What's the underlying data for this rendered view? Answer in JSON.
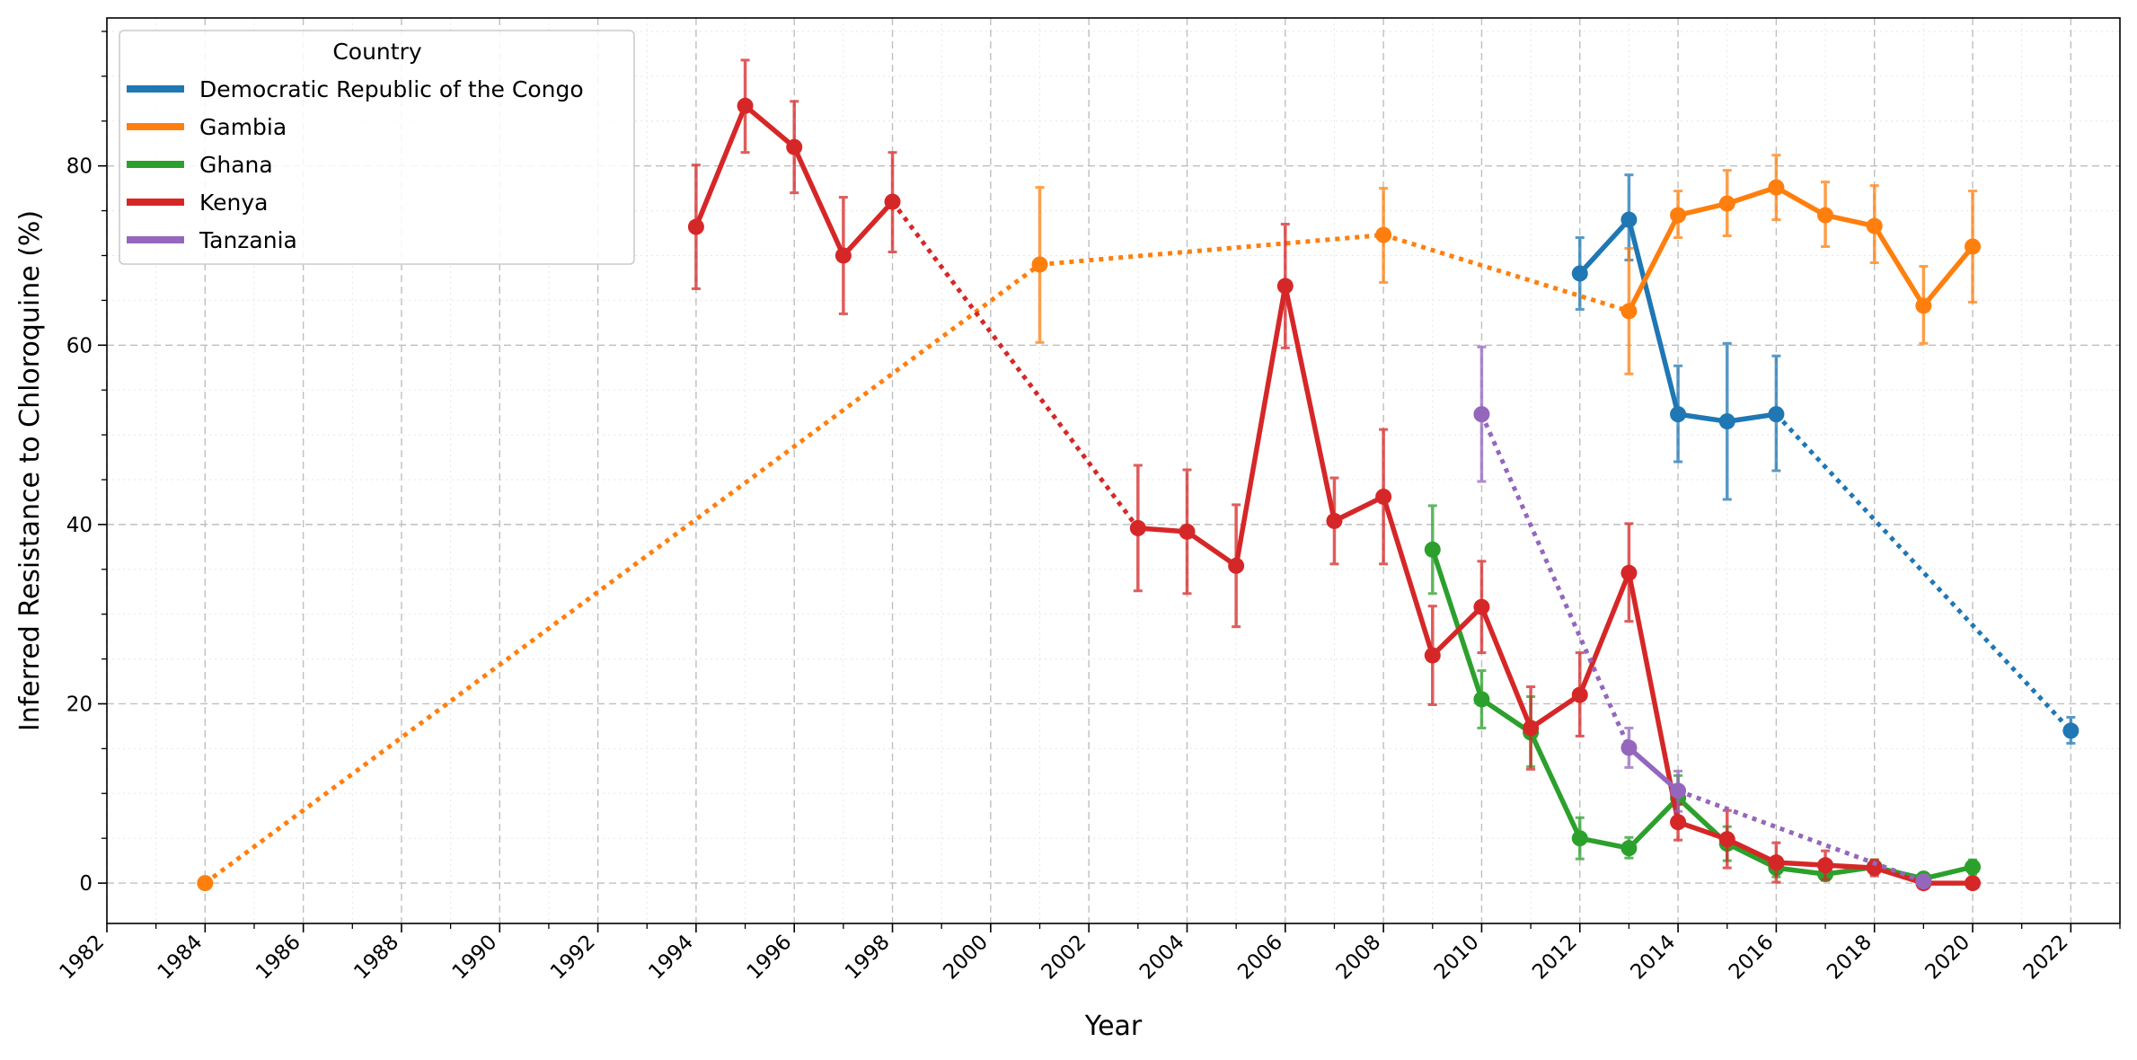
{
  "chart_data": {
    "type": "line",
    "title": "",
    "xlabel": "Year",
    "ylabel": "Inferred Resistance to Chloroquine (%)",
    "xlim": [
      1982,
      2023
    ],
    "ylim": [
      -4.5,
      96.5
    ],
    "x_ticks": [
      1982,
      1984,
      1986,
      1988,
      1990,
      1992,
      1994,
      1996,
      1998,
      2000,
      2002,
      2004,
      2006,
      2008,
      2010,
      2012,
      2014,
      2016,
      2018,
      2020,
      2022
    ],
    "y_ticks": [
      0,
      20,
      40,
      60,
      80
    ],
    "grid": true,
    "legend": {
      "title": "Country",
      "placement": "upper-left"
    },
    "series": [
      {
        "name": "Democratic Republic of the Congo",
        "color": "#1f77b4",
        "points": [
          {
            "x": 2012,
            "y": 68.0,
            "lo": 64.0,
            "hi": 72.0
          },
          {
            "x": 2013,
            "y": 74.0,
            "lo": 69.5,
            "hi": 79.0
          },
          {
            "x": 2014,
            "y": 52.3,
            "lo": 47.0,
            "hi": 57.7
          },
          {
            "x": 2015,
            "y": 51.5,
            "lo": 42.8,
            "hi": 60.2
          },
          {
            "x": 2016,
            "y": 52.3,
            "lo": 46.0,
            "hi": 58.8
          },
          {
            "x": 2022,
            "y": 17.0,
            "lo": 15.6,
            "hi": 18.5
          }
        ]
      },
      {
        "name": "Gambia",
        "color": "#ff7f0e",
        "points": [
          {
            "x": 1984,
            "y": 0.0,
            "lo": 0.0,
            "hi": 0.0
          },
          {
            "x": 2001,
            "y": 69.0,
            "lo": 60.3,
            "hi": 77.6
          },
          {
            "x": 2008,
            "y": 72.3,
            "lo": 67.0,
            "hi": 77.5
          },
          {
            "x": 2013,
            "y": 63.8,
            "lo": 56.8,
            "hi": 70.8
          },
          {
            "x": 2014,
            "y": 74.5,
            "lo": 72.0,
            "hi": 77.2
          },
          {
            "x": 2015,
            "y": 75.8,
            "lo": 72.2,
            "hi": 79.5
          },
          {
            "x": 2016,
            "y": 77.6,
            "lo": 74.0,
            "hi": 81.2
          },
          {
            "x": 2017,
            "y": 74.5,
            "lo": 71.0,
            "hi": 78.2
          },
          {
            "x": 2018,
            "y": 73.3,
            "lo": 69.2,
            "hi": 77.8
          },
          {
            "x": 2019,
            "y": 64.4,
            "lo": 60.2,
            "hi": 68.8
          },
          {
            "x": 2020,
            "y": 71.0,
            "lo": 64.8,
            "hi": 77.2
          }
        ]
      },
      {
        "name": "Ghana",
        "color": "#2ca02c",
        "points": [
          {
            "x": 2009,
            "y": 37.2,
            "lo": 32.3,
            "hi": 42.1
          },
          {
            "x": 2010,
            "y": 20.5,
            "lo": 17.3,
            "hi": 23.7
          },
          {
            "x": 2011,
            "y": 16.8,
            "lo": 13.0,
            "hi": 20.8
          },
          {
            "x": 2012,
            "y": 5.0,
            "lo": 2.7,
            "hi": 7.3
          },
          {
            "x": 2013,
            "y": 3.9,
            "lo": 2.8,
            "hi": 5.1
          },
          {
            "x": 2014,
            "y": 9.5,
            "lo": 7.0,
            "hi": 12.0
          },
          {
            "x": 2015,
            "y": 4.4,
            "lo": 2.5,
            "hi": 6.3
          },
          {
            "x": 2016,
            "y": 1.7,
            "lo": 0.7,
            "hi": 2.8
          },
          {
            "x": 2017,
            "y": 1.0,
            "lo": 0.3,
            "hi": 1.7
          },
          {
            "x": 2018,
            "y": 1.8,
            "lo": 1.0,
            "hi": 2.6
          },
          {
            "x": 2019,
            "y": 0.5,
            "lo": 0.0,
            "hi": 1.0
          },
          {
            "x": 2020,
            "y": 1.8,
            "lo": 1.0,
            "hi": 2.6
          }
        ]
      },
      {
        "name": "Kenya",
        "color": "#d62728",
        "points": [
          {
            "x": 1994,
            "y": 73.2,
            "lo": 66.3,
            "hi": 80.1
          },
          {
            "x": 1995,
            "y": 86.7,
            "lo": 81.5,
            "hi": 91.8
          },
          {
            "x": 1996,
            "y": 82.1,
            "lo": 77.0,
            "hi": 87.2
          },
          {
            "x": 1997,
            "y": 70.0,
            "lo": 63.5,
            "hi": 76.5
          },
          {
            "x": 1998,
            "y": 76.0,
            "lo": 70.4,
            "hi": 81.5
          },
          {
            "x": 2003,
            "y": 39.6,
            "lo": 32.6,
            "hi": 46.6
          },
          {
            "x": 2004,
            "y": 39.2,
            "lo": 32.3,
            "hi": 46.1
          },
          {
            "x": 2005,
            "y": 35.4,
            "lo": 28.6,
            "hi": 42.2
          },
          {
            "x": 2006,
            "y": 66.6,
            "lo": 59.7,
            "hi": 73.5
          },
          {
            "x": 2007,
            "y": 40.4,
            "lo": 35.6,
            "hi": 45.2
          },
          {
            "x": 2008,
            "y": 43.1,
            "lo": 35.6,
            "hi": 50.6
          },
          {
            "x": 2009,
            "y": 25.4,
            "lo": 19.9,
            "hi": 30.9
          },
          {
            "x": 2010,
            "y": 30.8,
            "lo": 25.7,
            "hi": 35.9
          },
          {
            "x": 2011,
            "y": 17.3,
            "lo": 12.7,
            "hi": 21.9
          },
          {
            "x": 2012,
            "y": 21.0,
            "lo": 16.4,
            "hi": 25.7
          },
          {
            "x": 2013,
            "y": 34.6,
            "lo": 29.2,
            "hi": 40.1
          },
          {
            "x": 2014,
            "y": 6.8,
            "lo": 4.8,
            "hi": 8.8
          },
          {
            "x": 2015,
            "y": 4.9,
            "lo": 1.7,
            "hi": 8.1
          },
          {
            "x": 2016,
            "y": 2.3,
            "lo": 0.1,
            "hi": 4.5
          },
          {
            "x": 2017,
            "y": 2.0,
            "lo": 0.4,
            "hi": 3.6
          },
          {
            "x": 2018,
            "y": 1.7,
            "lo": 0.8,
            "hi": 2.6
          },
          {
            "x": 2019,
            "y": 0.0,
            "lo": 0.0,
            "hi": 0.0
          },
          {
            "x": 2020,
            "y": 0.0,
            "lo": 0.0,
            "hi": 0.0
          }
        ]
      },
      {
        "name": "Tanzania",
        "color": "#9467bd",
        "points": [
          {
            "x": 2010,
            "y": 52.3,
            "lo": 44.8,
            "hi": 59.8
          },
          {
            "x": 2013,
            "y": 15.1,
            "lo": 12.9,
            "hi": 17.3
          },
          {
            "x": 2014,
            "y": 10.3,
            "lo": 8.0,
            "hi": 12.5
          },
          {
            "x": 2019,
            "y": 0.2,
            "lo": 0.0,
            "hi": 0.5
          }
        ]
      }
    ]
  }
}
